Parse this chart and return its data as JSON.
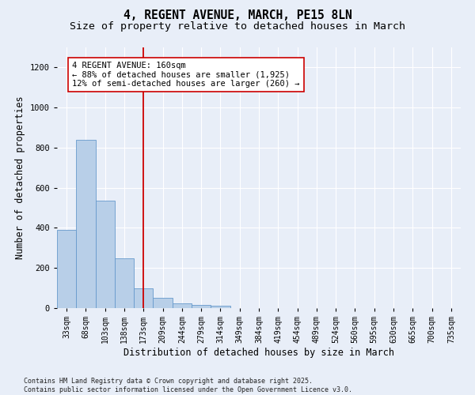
{
  "title_line1": "4, REGENT AVENUE, MARCH, PE15 8LN",
  "title_line2": "Size of property relative to detached houses in March",
  "xlabel": "Distribution of detached houses by size in March",
  "ylabel": "Number of detached properties",
  "categories": [
    "33sqm",
    "68sqm",
    "103sqm",
    "138sqm",
    "173sqm",
    "209sqm",
    "244sqm",
    "279sqm",
    "314sqm",
    "349sqm",
    "384sqm",
    "419sqm",
    "454sqm",
    "489sqm",
    "524sqm",
    "560sqm",
    "595sqm",
    "630sqm",
    "665sqm",
    "700sqm",
    "735sqm"
  ],
  "values": [
    390,
    840,
    535,
    248,
    100,
    52,
    22,
    17,
    13,
    0,
    0,
    0,
    0,
    0,
    0,
    0,
    0,
    0,
    0,
    0,
    0
  ],
  "bar_color": "#b8cfe8",
  "bar_edgecolor": "#6699cc",
  "vline_x_index": 4,
  "vline_color": "#cc0000",
  "annotation_text": "4 REGENT AVENUE: 160sqm\n← 88% of detached houses are smaller (1,925)\n12% of semi-detached houses are larger (260) →",
  "ylim": [
    0,
    1300
  ],
  "yticks": [
    0,
    200,
    400,
    600,
    800,
    1000,
    1200
  ],
  "background_color": "#e8eef8",
  "grid_color": "#ffffff",
  "footer_line1": "Contains HM Land Registry data © Crown copyright and database right 2025.",
  "footer_line2": "Contains public sector information licensed under the Open Government Licence v3.0.",
  "title_fontsize": 10.5,
  "subtitle_fontsize": 9.5,
  "axis_label_fontsize": 8.5,
  "tick_fontsize": 7,
  "annotation_fontsize": 7.5,
  "footer_fontsize": 6
}
